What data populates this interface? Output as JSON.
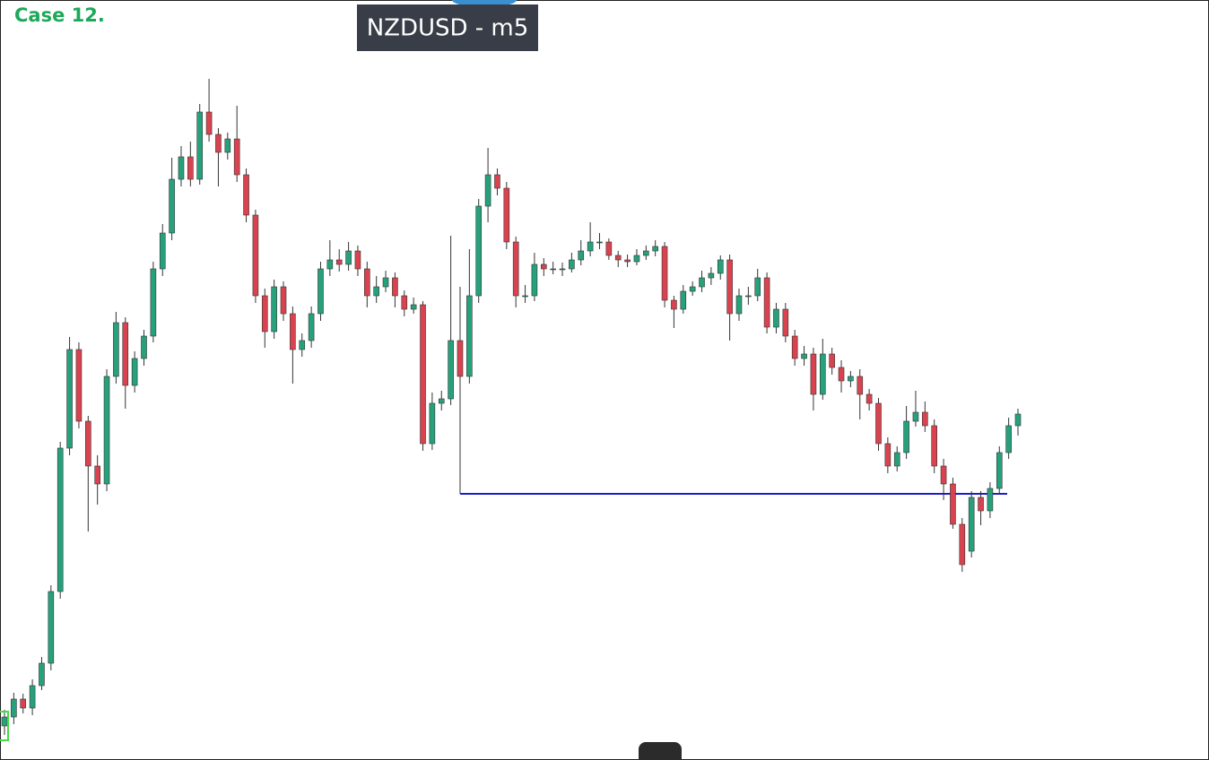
{
  "chart_data": {
    "type": "candlestick",
    "title": "NZDUSD - m5",
    "annotation": "Case 12.",
    "categories": [
      null,
      null,
      null,
      null,
      null,
      null,
      null,
      null,
      null,
      null,
      null,
      null,
      null,
      null,
      null,
      null,
      null,
      null,
      null,
      null,
      null,
      null,
      null,
      null,
      null,
      null,
      null,
      null,
      null,
      null,
      null,
      null,
      null,
      null,
      null,
      null,
      null,
      null,
      null,
      null,
      null,
      null,
      null,
      null,
      null,
      null,
      null,
      null,
      null,
      null,
      null,
      null,
      null,
      null,
      null,
      null,
      null,
      null,
      null,
      null,
      null,
      null,
      null,
      null,
      null,
      null,
      null,
      null,
      null,
      null,
      null,
      null,
      null,
      null,
      null,
      null,
      null,
      null,
      null,
      null,
      null,
      null,
      null,
      null,
      null,
      null,
      null,
      null,
      null,
      null,
      null,
      null,
      null,
      null,
      null,
      null,
      null,
      null,
      null,
      null,
      null,
      null,
      null,
      null,
      null,
      null,
      null,
      null,
      null,
      null
    ],
    "open": [
      38,
      48,
      68,
      58,
      83,
      108,
      188,
      348,
      458,
      378,
      328,
      308,
      428,
      488,
      418,
      448,
      473,
      548,
      588,
      648,
      673,
      648,
      723,
      698,
      678,
      693,
      653,
      608,
      518,
      478,
      528,
      498,
      458,
      468,
      498,
      548,
      558,
      553,
      568,
      548,
      518,
      528,
      538,
      518,
      503,
      508,
      353,
      398,
      403,
      468,
      428,
      518,
      618,
      653,
      638,
      578,
      518,
      518,
      553,
      548,
      548,
      548,
      558,
      568,
      578,
      578,
      563,
      558,
      556,
      563,
      568,
      573,
      513,
      503,
      523,
      528,
      538,
      543,
      558,
      498,
      518,
      518,
      538,
      483,
      503,
      473,
      448,
      453,
      408,
      453,
      438,
      423,
      428,
      408,
      398,
      353,
      328,
      343,
      378,
      388,
      373,
      328,
      308,
      263,
      233,
      293,
      278,
      303,
      343,
      373
    ],
    "high": [
      56,
      75,
      74,
      90,
      115,
      195,
      355,
      472,
      466,
      384,
      340,
      436,
      500,
      494,
      456,
      480,
      556,
      598,
      672,
      685,
      690,
      732,
      760,
      705,
      700,
      730,
      660,
      614,
      526,
      536,
      534,
      506,
      476,
      506,
      556,
      580,
      570,
      578,
      574,
      556,
      540,
      546,
      544,
      524,
      516,
      512,
      410,
      412,
      585,
      528,
      570,
      626,
      683,
      660,
      645,
      584,
      530,
      566,
      560,
      556,
      555,
      566,
      580,
      600,
      588,
      582,
      568,
      564,
      570,
      574,
      580,
      578,
      518,
      530,
      534,
      546,
      550,
      563,
      564,
      526,
      528,
      548,
      544,
      510,
      510,
      480,
      462,
      460,
      470,
      460,
      446,
      434,
      436,
      414,
      404,
      360,
      350,
      395,
      412,
      400,
      380,
      336,
      315,
      270,
      300,
      300,
      310,
      350,
      382,
      392
    ],
    "low": [
      28,
      40,
      52,
      50,
      78,
      100,
      180,
      340,
      370,
      255,
      285,
      300,
      420,
      392,
      410,
      440,
      466,
      540,
      580,
      640,
      640,
      642,
      690,
      640,
      670,
      645,
      600,
      510,
      460,
      470,
      490,
      420,
      450,
      460,
      490,
      540,
      545,
      546,
      540,
      505,
      510,
      522,
      505,
      495,
      498,
      345,
      346,
      390,
      396,
      297,
      420,
      510,
      600,
      630,
      570,
      505,
      510,
      512,
      540,
      542,
      540,
      544,
      552,
      562,
      570,
      558,
      550,
      550,
      552,
      558,
      562,
      505,
      482,
      498,
      518,
      522,
      530,
      536,
      468,
      490,
      508,
      512,
      476,
      476,
      466,
      440,
      440,
      390,
      402,
      430,
      410,
      416,
      380,
      390,
      345,
      320,
      322,
      336,
      372,
      366,
      320,
      290,
      258,
      210,
      226,
      262,
      270,
      296,
      336,
      362
    ],
    "close": [
      48,
      68,
      58,
      83,
      108,
      188,
      348,
      458,
      378,
      328,
      308,
      428,
      488,
      418,
      448,
      473,
      548,
      588,
      648,
      673,
      648,
      723,
      698,
      678,
      693,
      653,
      608,
      518,
      478,
      528,
      498,
      458,
      468,
      498,
      548,
      558,
      553,
      568,
      548,
      518,
      528,
      538,
      518,
      503,
      508,
      353,
      398,
      403,
      468,
      428,
      518,
      618,
      653,
      638,
      578,
      518,
      518,
      553,
      548,
      548,
      548,
      558,
      568,
      578,
      578,
      563,
      558,
      556,
      563,
      568,
      573,
      513,
      503,
      523,
      528,
      538,
      543,
      558,
      498,
      518,
      518,
      538,
      483,
      503,
      473,
      448,
      453,
      408,
      453,
      438,
      423,
      428,
      408,
      398,
      353,
      328,
      343,
      378,
      388,
      373,
      328,
      308,
      263,
      218,
      293,
      278,
      303,
      343,
      373,
      386
    ],
    "ylim": [
      0,
      848
    ],
    "up_color": "#26a17b",
    "down_color": "#d9434f",
    "level": {
      "value": 297,
      "color": "#1c1ccc"
    },
    "highlight_color": "#44dd44"
  }
}
